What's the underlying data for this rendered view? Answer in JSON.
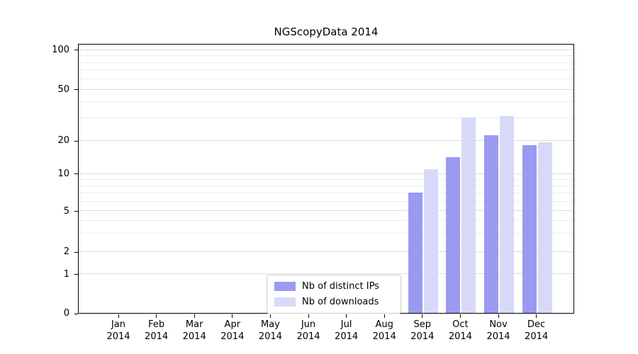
{
  "chart_data": {
    "type": "bar",
    "title": "NGScopyData 2014",
    "year_label": "2014",
    "categories": [
      "Jan",
      "Feb",
      "Mar",
      "Apr",
      "May",
      "Jun",
      "Jul",
      "Aug",
      "Sep",
      "Oct",
      "Nov",
      "Dec"
    ],
    "series": [
      {
        "name": "Nb of distinct IPs",
        "color": "#9a9af1",
        "values": [
          0,
          0,
          0,
          0,
          0,
          0,
          0,
          0,
          7,
          14,
          22,
          18
        ]
      },
      {
        "name": "Nb of downloads",
        "color": "#d8d8f8",
        "values": [
          0,
          0,
          0,
          0,
          0,
          0,
          0,
          0,
          11,
          30,
          31,
          19
        ]
      }
    ],
    "yscale": "symlog",
    "yticks": [
      0,
      1,
      2,
      5,
      10,
      20,
      50,
      100
    ],
    "minor_yticks": [
      3,
      4,
      6,
      7,
      8,
      9,
      30,
      40,
      60,
      70,
      80,
      90
    ],
    "ylim": [
      0,
      115
    ],
    "xlabel": "",
    "ylabel": "",
    "grid": "horizontal",
    "legend_position": "lower center inside"
  }
}
